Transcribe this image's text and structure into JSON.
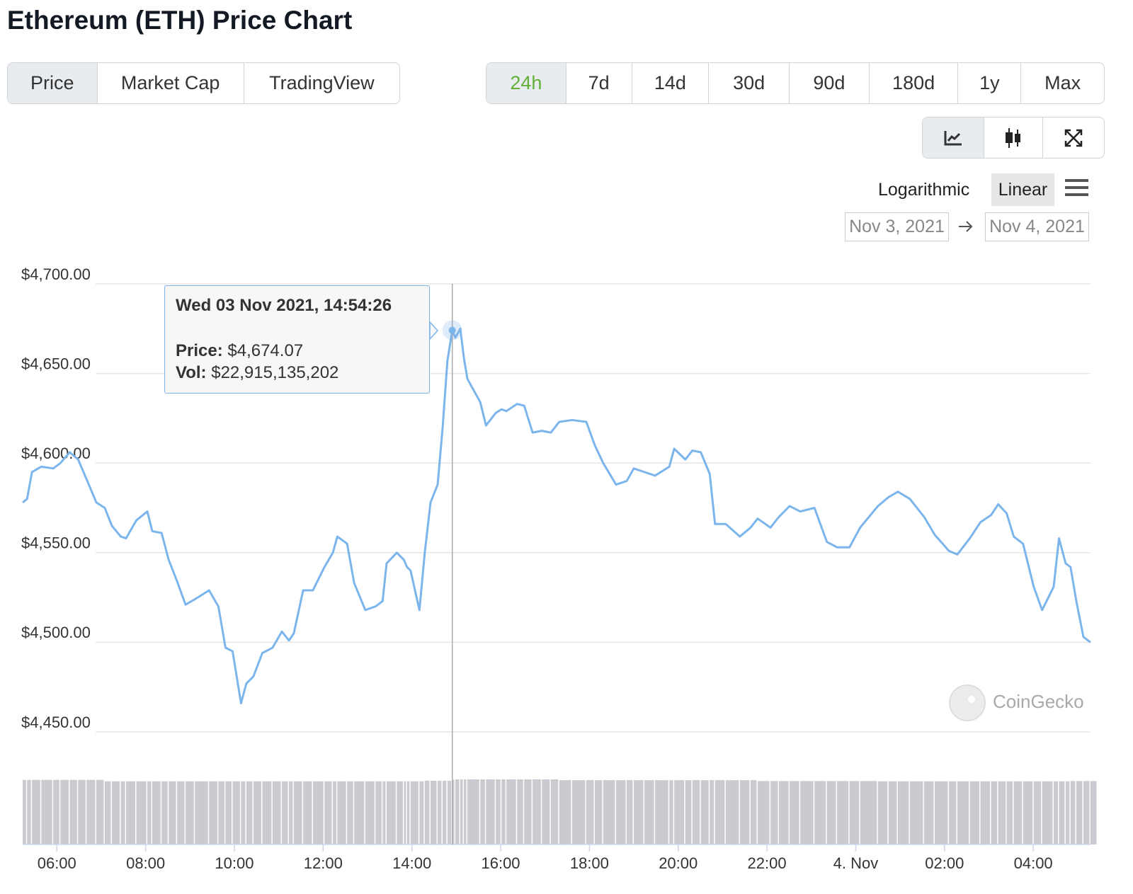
{
  "title": "Ethereum (ETH) Price Chart",
  "tabs": [
    "Price",
    "Market Cap",
    "TradingView"
  ],
  "ranges": [
    "24h",
    "7d",
    "14d",
    "30d",
    "90d",
    "180d",
    "1y",
    "Max"
  ],
  "scales": [
    "Logarithmic",
    "Linear"
  ],
  "date_range": [
    "Nov 3, 2021",
    "Nov 4, 2021"
  ],
  "watermark": "CoinGecko",
  "chart_data": {
    "type": "line",
    "tooltip_title": "Wed 03 Nov 2021, 14:54:26",
    "x": [
      5.23,
      5.33,
      5.44,
      5.65,
      5.92,
      6.08,
      6.29,
      6.48,
      6.67,
      6.89,
      7.08,
      7.24,
      7.44,
      7.56,
      7.79,
      8.04,
      8.15,
      8.36,
      8.52,
      8.71,
      8.9,
      9.11,
      9.43,
      9.64,
      9.8,
      9.96,
      10.15,
      10.27,
      10.43,
      10.63,
      10.86,
      11.07,
      11.23,
      11.34,
      11.55,
      11.77,
      12.03,
      12.22,
      12.32,
      12.54,
      12.7,
      12.95,
      13.18,
      13.34,
      13.43,
      13.66,
      13.82,
      13.89,
      13.97,
      14.17,
      14.29,
      14.42,
      14.58,
      14.69,
      14.8,
      14.91,
      14.98,
      15.09,
      15.17,
      15.25,
      15.54,
      15.67,
      15.89,
      16.02,
      16.13,
      16.37,
      16.53,
      16.72,
      16.93,
      17.13,
      17.32,
      17.61,
      17.93,
      18.12,
      18.31,
      18.6,
      18.84,
      19.0,
      19.24,
      19.48,
      19.8,
      19.91,
      20.16,
      20.32,
      20.51,
      20.71,
      20.83,
      21.07,
      21.39,
      21.63,
      21.79,
      22.08,
      22.27,
      22.51,
      22.75,
      23.07,
      23.35,
      23.58,
      23.86,
      24.1,
      24.5,
      24.74,
      24.95,
      25.22,
      25.54,
      25.78,
      26.1,
      26.29,
      26.57,
      26.81,
      27.05,
      27.21,
      27.4,
      27.56,
      27.77,
      28.01,
      28.2,
      28.46,
      28.58,
      28.73,
      28.84,
      28.97,
      29.13,
      29.29
    ],
    "series": [
      {
        "name": "Price:",
        "color": "#7cb5ec",
        "values": [
          4578,
          4580,
          4595,
          4598,
          4597,
          4600,
          4606,
          4602,
          4591,
          4578,
          4575,
          4565,
          4559,
          4558,
          4568,
          4573,
          4562,
          4561,
          4546,
          4534,
          4521,
          4524,
          4529,
          4520,
          4497,
          4495,
          4466,
          4477,
          4481,
          4494,
          4497,
          4506,
          4501,
          4505,
          4529,
          4529,
          4542,
          4550,
          4559,
          4555,
          4533,
          4518,
          4520,
          4523,
          4544,
          4550,
          4546,
          4542,
          4540,
          4518,
          4550,
          4578,
          4588,
          4619,
          4657,
          4674.07,
          4670,
          4675,
          4659,
          4647,
          4634,
          4621,
          4628,
          4630,
          4629,
          4633,
          4632,
          4617,
          4618,
          4617,
          4623,
          4624,
          4623,
          4610,
          4600,
          4588,
          4590,
          4597,
          4595,
          4593,
          4598,
          4608,
          4602,
          4607,
          4606,
          4594,
          4566,
          4566,
          4559,
          4564,
          4569,
          4564,
          4570,
          4576,
          4573,
          4575,
          4556,
          4553,
          4553,
          4564,
          4576,
          4581,
          4584,
          4580,
          4570,
          4560,
          4551,
          4549,
          4558,
          4567,
          4571,
          4577,
          4572,
          4559,
          4555,
          4531,
          4518,
          4531,
          4558,
          4544,
          4542,
          4523,
          4503,
          4500
        ],
        "value_labels": [
          null,
          null,
          null,
          null,
          null,
          null,
          null,
          null,
          null,
          null,
          null,
          null,
          null,
          null,
          null,
          null,
          null,
          null,
          null,
          null,
          null,
          null,
          null,
          null,
          null,
          null,
          null,
          null,
          null,
          null,
          null,
          null,
          null,
          null,
          null,
          null,
          null,
          null,
          null,
          null,
          null,
          null,
          null,
          null,
          null,
          null,
          null,
          null,
          null,
          null,
          null,
          null,
          null,
          null,
          null,
          "$4,674.07",
          null,
          null,
          null,
          null,
          null,
          null,
          null,
          null,
          null,
          null,
          null,
          null,
          null,
          null,
          null,
          null,
          null,
          null,
          null,
          null,
          null,
          null,
          null,
          null,
          null,
          null,
          null,
          null,
          null,
          null,
          null,
          null,
          null,
          null,
          null,
          null,
          null,
          null,
          null,
          null,
          null,
          null,
          null,
          null,
          null,
          null,
          null,
          null,
          null,
          null,
          null,
          null,
          null,
          null,
          null,
          null,
          null,
          null,
          null,
          null,
          null,
          null,
          null,
          null,
          null,
          null,
          null,
          null
        ]
      },
      {
        "name": "Vol:",
        "color": "#c9cbd0",
        "axis": "y2",
        "values": [
          22800000000,
          22800000000,
          22800000000,
          22800000000,
          22800000000,
          22800000000,
          22800000000,
          22800000000,
          22800000000,
          22800000000,
          22300000000,
          22300000000,
          22300000000,
          22300000000,
          22300000000,
          22300000000,
          22300000000,
          22300000000,
          22300000000,
          22300000000,
          22300000000,
          22300000000,
          22300000000,
          22300000000,
          22300000000,
          22300000000,
          22300000000,
          22300000000,
          22300000000,
          22300000000,
          22300000000,
          22300000000,
          22300000000,
          22300000000,
          22300000000,
          22300000000,
          22300000000,
          22300000000,
          22300000000,
          22300000000,
          22300000000,
          22300000000,
          22300000000,
          22300000000,
          22300000000,
          22300000000,
          22300000000,
          22300000000,
          22300000000,
          22300000000,
          22500000000,
          22500000000,
          22500000000,
          22500000000,
          22500000000,
          22915135202,
          23000000000,
          23000000000,
          23000000000,
          23000000000,
          23000000000,
          23000000000,
          23000000000,
          23000000000,
          23000000000,
          23000000000,
          23000000000,
          23000000000,
          23000000000,
          23000000000,
          22700000000,
          22700000000,
          22700000000,
          22700000000,
          22700000000,
          22700000000,
          22700000000,
          22700000000,
          22700000000,
          22700000000,
          22700000000,
          22700000000,
          22700000000,
          22700000000,
          22700000000,
          22700000000,
          22700000000,
          22700000000,
          22700000000,
          22700000000,
          22400000000,
          22400000000,
          22400000000,
          22400000000,
          22400000000,
          22400000000,
          22400000000,
          22400000000,
          22400000000,
          22400000000,
          22300000000,
          22300000000,
          22300000000,
          22300000000,
          22300000000,
          22300000000,
          22300000000,
          22300000000,
          22300000000,
          22300000000,
          22300000000,
          22300000000,
          22300000000,
          22300000000,
          22300000000,
          22300000000,
          22300000000,
          22300000000,
          22300000000,
          22300000000,
          22400000000,
          22400000000,
          22400000000,
          22400000000
        ],
        "value_labels": [
          null,
          null,
          null,
          null,
          null,
          null,
          null,
          null,
          null,
          null,
          null,
          null,
          null,
          null,
          null,
          null,
          null,
          null,
          null,
          null,
          null,
          null,
          null,
          null,
          null,
          null,
          null,
          null,
          null,
          null,
          null,
          null,
          null,
          null,
          null,
          null,
          null,
          null,
          null,
          null,
          null,
          null,
          null,
          null,
          null,
          null,
          null,
          null,
          null,
          null,
          null,
          null,
          null,
          null,
          null,
          "$22,915,135,202",
          null,
          null,
          null,
          null,
          null,
          null,
          null,
          null,
          null,
          null,
          null,
          null,
          null,
          null,
          null,
          null,
          null,
          null,
          null,
          null,
          null,
          null,
          null,
          null,
          null,
          null,
          null,
          null,
          null,
          null,
          null,
          null,
          null,
          null,
          null,
          null,
          null,
          null,
          null,
          null,
          null,
          null,
          null,
          null,
          null,
          null,
          null,
          null,
          null,
          null,
          null,
          null,
          null,
          null,
          null,
          null,
          null,
          null,
          null,
          null,
          null,
          null,
          null,
          null,
          null,
          null,
          null,
          null
        ]
      }
    ],
    "xlim": [
      5.23,
      29.29
    ],
    "xticks": [
      {
        "value": 6,
        "label": "06:00"
      },
      {
        "value": 8,
        "label": "08:00"
      },
      {
        "value": 10,
        "label": "10:00"
      },
      {
        "value": 12,
        "label": "12:00"
      },
      {
        "value": 14,
        "label": "14:00"
      },
      {
        "value": 16,
        "label": "16:00"
      },
      {
        "value": 18,
        "label": "18:00"
      },
      {
        "value": 20,
        "label": "20:00"
      },
      {
        "value": 22,
        "label": "22:00"
      },
      {
        "value": 24,
        "label": "4. Nov"
      },
      {
        "value": 26,
        "label": "02:00"
      },
      {
        "value": 28,
        "label": "04:00"
      }
    ],
    "ylim": [
      4450,
      4700
    ],
    "yticks": [
      {
        "value": 4450,
        "label": "$4,450.00"
      },
      {
        "value": 4500,
        "label": "$4,500.00"
      },
      {
        "value": 4550,
        "label": "$4,550.00"
      },
      {
        "value": 4600,
        "label": "$4,600.00"
      },
      {
        "value": 4650,
        "label": "$4,650.00"
      },
      {
        "value": 4700,
        "label": "$4,700.00"
      }
    ],
    "y2lim": [
      0,
      27000000000
    ],
    "grid": true,
    "log_scale": false
  }
}
